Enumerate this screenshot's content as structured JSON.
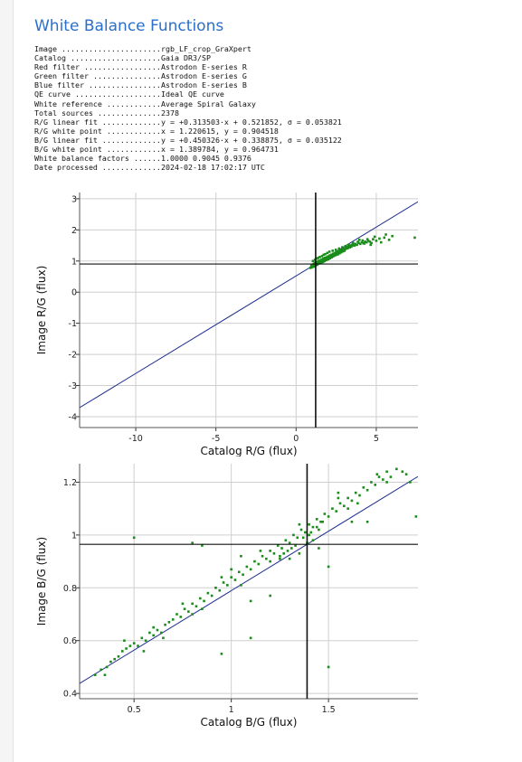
{
  "page": {
    "title": "White Balance Functions"
  },
  "info": [
    {
      "key": "Image",
      "value": "rgb_LF_crop_GraXpert"
    },
    {
      "key": "Catalog",
      "value": "Gaia DR3/SP"
    },
    {
      "key": "Red filter",
      "value": "Astrodon E-series R"
    },
    {
      "key": "Green filter",
      "value": "Astrodon E-series G"
    },
    {
      "key": "Blue filter",
      "value": "Astrodon E-series B"
    },
    {
      "key": "QE curve",
      "value": "Ideal QE curve"
    },
    {
      "key": "White reference",
      "value": "Average Spiral Galaxy"
    },
    {
      "key": "Total sources",
      "value": "2378"
    },
    {
      "key": "R/G linear fit",
      "value": "y = +0.313503·x + 0.521852, σ = 0.053821"
    },
    {
      "key": "R/G white point",
      "value": "x = 1.220615, y = 0.904518"
    },
    {
      "key": "B/G linear fit",
      "value": "y = +0.450326·x + 0.338875, σ = 0.035122"
    },
    {
      "key": "B/G white point",
      "value": "x = 1.389784, y = 0.964731"
    },
    {
      "key": "White balance factors",
      "value": "1.0000 0.9045 0.9376"
    },
    {
      "key": "Date processed",
      "value": "2024-02-18 17:02:17 UTC"
    }
  ],
  "colors": {
    "title": "#2b6fce",
    "points": "#1a8c1a",
    "fit_line": "#1f2f8f",
    "white_point": "#111111",
    "grid": "#cfcfcf"
  },
  "chart_data": [
    {
      "type": "scatter",
      "xlabel": "Catalog R/G (flux)",
      "ylabel": "Image R/G (flux)",
      "xlim": [
        -13.5,
        7.6
      ],
      "ylim": [
        -4.35,
        3.2
      ],
      "xticks": [
        -10,
        -5,
        0,
        5
      ],
      "yticks": [
        -4,
        -3,
        -2,
        -1,
        0,
        1,
        2,
        3
      ],
      "grid": true,
      "fit": {
        "slope": 0.313503,
        "intercept": 0.521852
      },
      "white_point": {
        "x": 1.220615,
        "y": 0.904518
      },
      "points": [
        [
          0.95,
          0.85
        ],
        [
          1.02,
          0.88
        ],
        [
          1.1,
          0.9
        ],
        [
          1.15,
          0.92
        ],
        [
          1.2,
          0.95
        ],
        [
          1.25,
          0.9
        ],
        [
          1.3,
          0.97
        ],
        [
          1.35,
          0.93
        ],
        [
          1.4,
          1.0
        ],
        [
          1.45,
          0.98
        ],
        [
          1.5,
          1.02
        ],
        [
          1.55,
          0.99
        ],
        [
          1.6,
          1.05
        ],
        [
          1.65,
          1.0
        ],
        [
          1.7,
          1.08
        ],
        [
          1.75,
          1.04
        ],
        [
          1.8,
          1.1
        ],
        [
          1.85,
          1.06
        ],
        [
          1.9,
          1.12
        ],
        [
          1.95,
          1.1
        ],
        [
          2.0,
          1.15
        ],
        [
          2.05,
          1.12
        ],
        [
          2.1,
          1.18
        ],
        [
          2.15,
          1.14
        ],
        [
          2.2,
          1.2
        ],
        [
          2.25,
          1.17
        ],
        [
          2.3,
          1.23
        ],
        [
          2.35,
          1.2
        ],
        [
          2.4,
          1.25
        ],
        [
          2.45,
          1.22
        ],
        [
          2.5,
          1.28
        ],
        [
          2.55,
          1.25
        ],
        [
          2.6,
          1.3
        ],
        [
          2.65,
          1.27
        ],
        [
          2.7,
          1.33
        ],
        [
          2.75,
          1.3
        ],
        [
          2.8,
          1.35
        ],
        [
          2.85,
          1.32
        ],
        [
          2.9,
          1.38
        ],
        [
          2.95,
          1.35
        ],
        [
          3.0,
          1.4
        ],
        [
          3.05,
          1.37
        ],
        [
          3.1,
          1.42
        ],
        [
          3.15,
          1.4
        ],
        [
          3.2,
          1.45
        ],
        [
          3.25,
          1.42
        ],
        [
          3.3,
          1.47
        ],
        [
          3.35,
          1.44
        ],
        [
          3.4,
          1.5
        ],
        [
          3.45,
          1.46
        ],
        [
          3.5,
          1.52
        ],
        [
          3.6,
          1.5
        ],
        [
          3.7,
          1.55
        ],
        [
          3.8,
          1.52
        ],
        [
          3.9,
          1.58
        ],
        [
          4.0,
          1.55
        ],
        [
          4.1,
          1.6
        ],
        [
          4.2,
          1.57
        ],
        [
          4.3,
          1.62
        ],
        [
          4.4,
          1.6
        ],
        [
          4.5,
          1.65
        ],
        [
          4.6,
          1.62
        ],
        [
          4.7,
          1.58
        ],
        [
          4.8,
          1.7
        ],
        [
          5.0,
          1.65
        ],
        [
          5.2,
          1.72
        ],
        [
          5.5,
          1.75
        ],
        [
          5.8,
          1.68
        ],
        [
          6.0,
          1.8
        ],
        [
          7.4,
          1.75
        ],
        [
          1.0,
          0.8
        ],
        [
          1.12,
          0.82
        ],
        [
          1.22,
          0.86
        ],
        [
          1.33,
          0.88
        ],
        [
          1.44,
          0.92
        ],
        [
          1.58,
          0.95
        ],
        [
          1.68,
          0.97
        ],
        [
          1.78,
          1.0
        ],
        [
          1.9,
          1.03
        ],
        [
          2.02,
          1.06
        ],
        [
          2.12,
          1.09
        ],
        [
          2.22,
          1.12
        ],
        [
          2.32,
          1.15
        ],
        [
          2.42,
          1.18
        ],
        [
          2.52,
          1.2
        ],
        [
          2.62,
          1.22
        ],
        [
          2.72,
          1.25
        ],
        [
          2.82,
          1.28
        ],
        [
          2.92,
          1.31
        ],
        [
          3.02,
          1.33
        ],
        [
          1.05,
          1.0
        ],
        [
          1.18,
          1.04
        ],
        [
          1.28,
          1.08
        ],
        [
          1.38,
          1.1
        ],
        [
          1.48,
          1.13
        ],
        [
          1.62,
          1.16
        ],
        [
          1.72,
          1.2
        ],
        [
          1.82,
          1.22
        ],
        [
          1.95,
          1.26
        ],
        [
          2.08,
          1.3
        ],
        [
          2.28,
          1.33
        ],
        [
          2.48,
          1.36
        ],
        [
          2.68,
          1.4
        ],
        [
          2.88,
          1.44
        ],
        [
          3.08,
          1.48
        ],
        [
          3.28,
          1.52
        ],
        [
          3.55,
          1.58
        ],
        [
          3.85,
          1.62
        ],
        [
          4.15,
          1.66
        ],
        [
          4.45,
          1.7
        ],
        [
          0.9,
          0.78
        ],
        [
          1.08,
          0.84
        ],
        [
          1.36,
          0.96
        ],
        [
          1.52,
          1.0
        ],
        [
          1.76,
          1.05
        ],
        [
          2.18,
          1.16
        ],
        [
          2.58,
          1.26
        ],
        [
          3.18,
          1.41
        ],
        [
          3.65,
          1.5
        ],
        [
          4.25,
          1.56
        ],
        [
          5.3,
          1.6
        ],
        [
          5.6,
          1.85
        ],
        [
          4.9,
          1.78
        ],
        [
          3.95,
          1.68
        ],
        [
          4.65,
          1.52
        ]
      ]
    },
    {
      "type": "scatter",
      "xlabel": "Catalog B/G (flux)",
      "ylabel": "Image B/G (flux)",
      "xlim": [
        0.22,
        1.96
      ],
      "ylim": [
        0.38,
        1.27
      ],
      "xticks": [
        0.5,
        1,
        1.5
      ],
      "yticks": [
        0.4,
        0.6,
        0.8,
        1,
        1.2
      ],
      "grid": true,
      "fit": {
        "slope": 0.450326,
        "intercept": 0.338875
      },
      "white_point": {
        "x": 1.389784,
        "y": 0.964731
      },
      "points": [
        [
          0.3,
          0.47
        ],
        [
          0.33,
          0.49
        ],
        [
          0.36,
          0.5
        ],
        [
          0.38,
          0.52
        ],
        [
          0.4,
          0.53
        ],
        [
          0.42,
          0.54
        ],
        [
          0.44,
          0.56
        ],
        [
          0.46,
          0.57
        ],
        [
          0.48,
          0.58
        ],
        [
          0.5,
          0.59
        ],
        [
          0.52,
          0.58
        ],
        [
          0.54,
          0.61
        ],
        [
          0.56,
          0.6
        ],
        [
          0.58,
          0.63
        ],
        [
          0.6,
          0.62
        ],
        [
          0.62,
          0.64
        ],
        [
          0.64,
          0.63
        ],
        [
          0.66,
          0.66
        ],
        [
          0.68,
          0.67
        ],
        [
          0.7,
          0.68
        ],
        [
          0.72,
          0.7
        ],
        [
          0.74,
          0.69
        ],
        [
          0.76,
          0.72
        ],
        [
          0.78,
          0.71
        ],
        [
          0.8,
          0.74
        ],
        [
          0.82,
          0.73
        ],
        [
          0.84,
          0.76
        ],
        [
          0.86,
          0.75
        ],
        [
          0.88,
          0.78
        ],
        [
          0.9,
          0.77
        ],
        [
          0.92,
          0.8
        ],
        [
          0.94,
          0.79
        ],
        [
          0.96,
          0.82
        ],
        [
          0.98,
          0.81
        ],
        [
          1.0,
          0.84
        ],
        [
          1.02,
          0.83
        ],
        [
          1.04,
          0.86
        ],
        [
          1.06,
          0.85
        ],
        [
          1.08,
          0.88
        ],
        [
          1.1,
          0.87
        ],
        [
          1.12,
          0.9
        ],
        [
          1.14,
          0.89
        ],
        [
          1.16,
          0.92
        ],
        [
          1.18,
          0.91
        ],
        [
          1.2,
          0.94
        ],
        [
          1.22,
          0.93
        ],
        [
          1.24,
          0.96
        ],
        [
          1.26,
          0.95
        ],
        [
          1.28,
          0.98
        ],
        [
          1.3,
          0.97
        ],
        [
          1.32,
          1.0
        ],
        [
          1.34,
          0.99
        ],
        [
          1.36,
          1.02
        ],
        [
          1.38,
          1.01
        ],
        [
          1.4,
          1.04
        ],
        [
          1.42,
          1.03
        ],
        [
          1.44,
          1.06
        ],
        [
          1.46,
          1.05
        ],
        [
          1.48,
          1.08
        ],
        [
          1.5,
          1.07
        ],
        [
          1.52,
          1.1
        ],
        [
          1.54,
          1.09
        ],
        [
          1.56,
          1.12
        ],
        [
          1.58,
          1.11
        ],
        [
          1.6,
          1.14
        ],
        [
          1.62,
          1.13
        ],
        [
          1.64,
          1.16
        ],
        [
          1.66,
          1.15
        ],
        [
          1.68,
          1.18
        ],
        [
          1.7,
          1.17
        ],
        [
          1.72,
          1.2
        ],
        [
          1.74,
          1.19
        ],
        [
          1.76,
          1.22
        ],
        [
          1.78,
          1.21
        ],
        [
          1.8,
          1.24
        ],
        [
          1.82,
          1.22
        ],
        [
          1.85,
          1.25
        ],
        [
          1.88,
          1.24
        ],
        [
          1.9,
          1.23
        ],
        [
          1.92,
          1.2
        ],
        [
          0.45,
          0.6
        ],
        [
          0.55,
          0.56
        ],
        [
          0.65,
          0.61
        ],
        [
          0.75,
          0.74
        ],
        [
          0.85,
          0.72
        ],
        [
          0.95,
          0.84
        ],
        [
          1.05,
          0.81
        ],
        [
          1.15,
          0.94
        ],
        [
          1.25,
          0.91
        ],
        [
          1.35,
          1.04
        ],
        [
          1.45,
          1.02
        ],
        [
          1.55,
          1.14
        ],
        [
          1.65,
          1.12
        ],
        [
          1.75,
          1.23
        ],
        [
          0.35,
          0.47
        ],
        [
          0.6,
          0.65
        ],
        [
          0.8,
          0.7
        ],
        [
          1.0,
          0.87
        ],
        [
          1.2,
          0.9
        ],
        [
          1.4,
          1.0
        ],
        [
          1.6,
          1.1
        ],
        [
          1.8,
          1.2
        ],
        [
          0.5,
          0.99
        ],
        [
          0.8,
          0.97
        ],
        [
          0.85,
          0.96
        ],
        [
          1.05,
          0.92
        ],
        [
          1.1,
          0.75
        ],
        [
          1.2,
          0.77
        ],
        [
          1.45,
          0.95
        ],
        [
          1.5,
          0.88
        ],
        [
          1.55,
          1.16
        ],
        [
          1.62,
          1.05
        ],
        [
          1.7,
          1.05
        ],
        [
          1.95,
          1.07
        ],
        [
          1.5,
          0.5
        ],
        [
          0.95,
          0.55
        ],
        [
          1.1,
          0.61
        ],
        [
          1.3,
          0.91
        ],
        [
          1.35,
          0.93
        ],
        [
          1.42,
          0.98
        ],
        [
          1.33,
          0.96
        ],
        [
          1.37,
          0.99
        ],
        [
          1.41,
          1.01
        ],
        [
          1.29,
          0.94
        ],
        [
          1.25,
          0.92
        ],
        [
          1.44,
          1.03
        ],
        [
          1.47,
          1.05
        ],
        [
          1.39,
          0.97
        ],
        [
          1.31,
          0.95
        ],
        [
          1.27,
          0.93
        ]
      ]
    }
  ]
}
